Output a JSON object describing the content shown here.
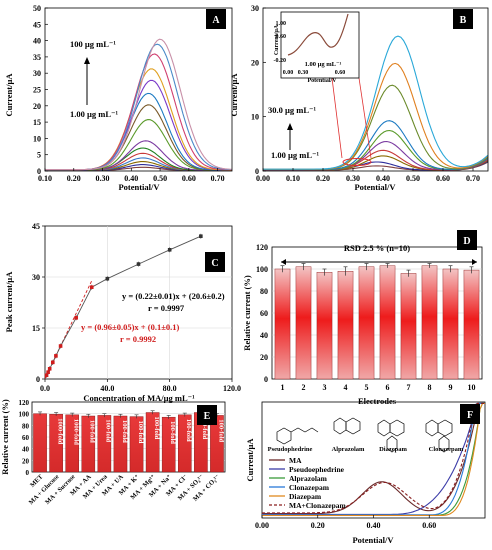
{
  "chart_data": [
    {
      "panel": "A",
      "type": "line",
      "xlabel": "Potential/V",
      "ylabel": "Current/µA",
      "xlim": [
        0.1,
        0.75
      ],
      "ylim": [
        0,
        50
      ],
      "xticks": [
        "0.10",
        "0.20",
        "0.30",
        "0.40",
        "0.50",
        "0.60",
        "0.70"
      ],
      "yticks": [
        "0",
        "5",
        "10",
        "15",
        "20",
        "25",
        "30",
        "35",
        "40",
        "45",
        "50"
      ],
      "annotations": {
        "high": "100 µg mL⁻¹",
        "low": "1.00 µg mL⁻¹"
      },
      "series": [
        {
          "peak_x": 0.44,
          "peak_y": 1.0,
          "color": "#7f3f3f"
        },
        {
          "peak_x": 0.44,
          "peak_y": 1.8,
          "color": "#2e2e9c"
        },
        {
          "peak_x": 0.44,
          "peak_y": 2.7,
          "color": "#8a6a00"
        },
        {
          "peak_x": 0.44,
          "peak_y": 3.8,
          "color": "#3a78c8"
        },
        {
          "peak_x": 0.44,
          "peak_y": 5.2,
          "color": "#c83a3a"
        },
        {
          "peak_x": 0.44,
          "peak_y": 6.8,
          "color": "#208020"
        },
        {
          "peak_x": 0.45,
          "peak_y": 9.0,
          "color": "#7a3aa0"
        },
        {
          "peak_x": 0.46,
          "peak_y": 15.5,
          "color": "#5a9a2a"
        },
        {
          "peak_x": 0.46,
          "peak_y": 20.0,
          "color": "#7a5a2a"
        },
        {
          "peak_x": 0.46,
          "peak_y": 23.5,
          "color": "#1c7ac2"
        },
        {
          "peak_x": 0.47,
          "peak_y": 27.5,
          "color": "#7a3ac8"
        },
        {
          "peak_x": 0.47,
          "peak_y": 31.0,
          "color": "#e0a020"
        },
        {
          "peak_x": 0.48,
          "peak_y": 35.5,
          "color": "#d04070"
        },
        {
          "peak_x": 0.49,
          "peak_y": 38.5,
          "color": "#4a8ac8"
        },
        {
          "peak_x": 0.5,
          "peak_y": 40.0,
          "color": "#c890a8"
        }
      ]
    },
    {
      "panel": "B",
      "type": "line",
      "xlabel": "Potential/V",
      "ylabel": "Current/µA",
      "xlim": [
        0.0,
        0.75
      ],
      "ylim": [
        0,
        30
      ],
      "xticks": [
        "0.00",
        "0.10",
        "0.20",
        "0.30",
        "0.40",
        "0.50",
        "0.60",
        "0.70"
      ],
      "yticks": [
        "0",
        "10",
        "20",
        "30"
      ],
      "annotations": {
        "high": "30.0 µg mL⁻¹",
        "low": "1.00 µg mL⁻¹"
      },
      "series": [
        {
          "peak_x": 0.38,
          "peak_y": 0.8,
          "color": "#7f3f3f"
        },
        {
          "peak_x": 0.38,
          "peak_y": 1.5,
          "color": "#2e2e9c"
        },
        {
          "peak_x": 0.4,
          "peak_y": 2.6,
          "color": "#8a6a00"
        },
        {
          "peak_x": 0.4,
          "peak_y": 3.6,
          "color": "#c83a3a"
        },
        {
          "peak_x": 0.41,
          "peak_y": 5.2,
          "color": "#7a3aa0"
        },
        {
          "peak_x": 0.42,
          "peak_y": 7.2,
          "color": "#5a9a2a"
        },
        {
          "peak_x": 0.42,
          "peak_y": 9.0,
          "color": "#1c7ac2"
        },
        {
          "peak_x": 0.43,
          "peak_y": 15.5,
          "color": "#6a8a2a"
        },
        {
          "peak_x": 0.44,
          "peak_y": 19.5,
          "color": "#e08020"
        },
        {
          "peak_x": 0.45,
          "peak_y": 24.5,
          "color": "#2aa8d8"
        }
      ],
      "inset": {
        "xlabel": "Potential/V",
        "ylabel": "Current/µA",
        "xticks": [
          "0.00",
          "0.30",
          "0.60"
        ],
        "yticks": [
          "-0.20",
          "0.60",
          "1.00"
        ],
        "label": "1.00 µg mL⁻¹"
      }
    },
    {
      "panel": "C",
      "type": "scatter",
      "xlabel": "Concentration of MA/µg mL⁻¹",
      "ylabel": "Peak current/µA",
      "xlim": [
        0,
        120
      ],
      "ylim": [
        0,
        45
      ],
      "xticks": [
        "0.0",
        "40.0",
        "80.0",
        "120.0"
      ],
      "yticks": [
        "0",
        "15",
        "30",
        "45"
      ],
      "x": [
        1,
        2,
        3,
        5,
        7,
        10,
        20,
        30,
        40,
        60,
        80,
        100
      ],
      "y": [
        1.1,
        2.0,
        3.0,
        4.9,
        6.8,
        9.7,
        18.0,
        27.0,
        29.5,
        33.8,
        38.0,
        42.0
      ],
      "fit_high": {
        "equation": "y = (0.22±0.01)x + (20.6±0.2)",
        "r": "r = 0.9997"
      },
      "fit_low": {
        "equation": "y = (0.96±0.05)x + (0.1±0.1)",
        "r": "r = 0.9992"
      }
    },
    {
      "panel": "D",
      "type": "bar",
      "xlabel": "Electrodes",
      "ylabel": "Relative current (%)",
      "ylim": [
        0,
        120
      ],
      "yticks": [
        "0",
        "20",
        "40",
        "60",
        "80",
        "100",
        "120"
      ],
      "categories": [
        "1",
        "2",
        "3",
        "4",
        "5",
        "6",
        "7",
        "8",
        "9",
        "10"
      ],
      "values": [
        100,
        102,
        97,
        98,
        102,
        103,
        96,
        103,
        100,
        99
      ],
      "errors": [
        3,
        3,
        3,
        4,
        3,
        2,
        3,
        2,
        3,
        3
      ],
      "annotation": "RSD 2.5 % (n=10)"
    },
    {
      "panel": "E",
      "type": "bar",
      "ylabel": "Relative current (%)",
      "ylim": [
        0,
        120
      ],
      "yticks": [
        "0",
        "20",
        "40",
        "60",
        "80",
        "100",
        "120"
      ],
      "categories": [
        "MET",
        "MA + Glucose",
        "MA + Sucrose",
        "MA + AA",
        "MA + Urea",
        "MA + UA",
        "MA + K⁺",
        "MA + Mg²⁺",
        "MA + Na⁺",
        "MA + Cl⁻",
        "MA + SO₄²⁻",
        "MA + CO₃²⁻"
      ],
      "values": [
        100,
        99,
        98,
        96,
        97,
        96,
        95,
        102,
        94,
        98,
        102,
        97
      ],
      "bar_labels": [
        "",
        "1000-fold",
        "1000-fold",
        "100-fold",
        "100-fold",
        "100-fold",
        "100-fold",
        "100-fold",
        "100-fold",
        "100-fold",
        "100-fold",
        "100-fold"
      ]
    },
    {
      "panel": "F",
      "type": "line",
      "xlabel": "Potential/V",
      "ylabel": "Current/µA",
      "xlim": [
        0.0,
        0.8
      ],
      "xticks": [
        "0.00",
        "0.20",
        "0.40",
        "0.60"
      ],
      "structures": [
        "Pseudophedrine",
        "Alprazolam",
        "Diazepam",
        "Clonazepam"
      ],
      "series": [
        {
          "name": "MA",
          "color": "#6b2a2a"
        },
        {
          "name": "Pseudoephedrine",
          "color": "#3c3ca8"
        },
        {
          "name": "Alprazolam",
          "color": "#3a9a3a"
        },
        {
          "name": "Clonazepam",
          "color": "#2a7ad8"
        },
        {
          "name": "Diazepam",
          "color": "#e08a20"
        },
        {
          "name": "MA+Clonazepam",
          "color": "#8a1f1f",
          "dashed": true
        }
      ]
    }
  ]
}
